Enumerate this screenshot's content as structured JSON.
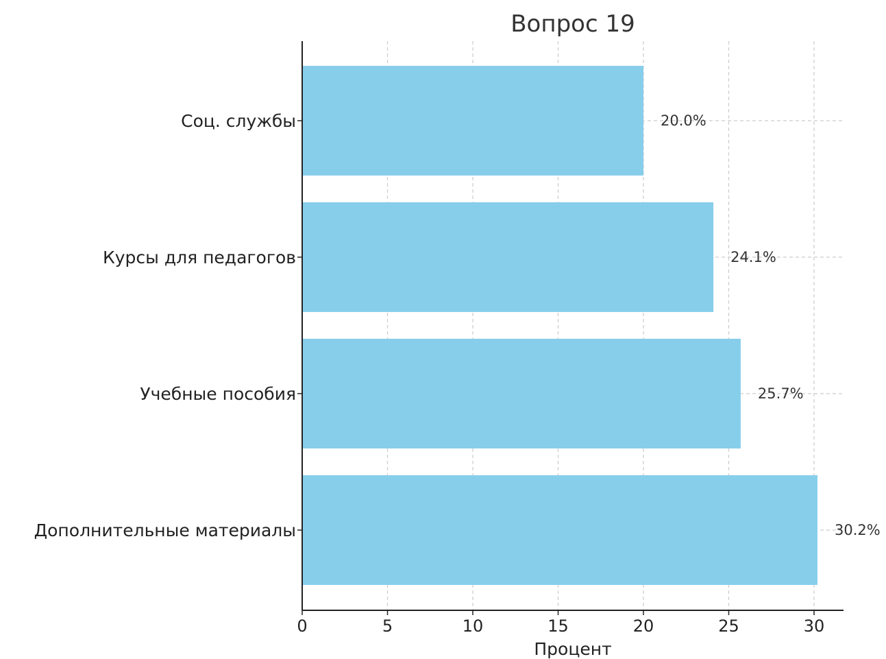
{
  "chart_data": {
    "type": "bar",
    "orientation": "horizontal",
    "title": "Вопрос 19",
    "xlabel": "Процент",
    "ylabel": "",
    "categories": [
      "Соц. службы",
      "Курсы для педагогов",
      "Учебные пособия",
      "Дополнительные материалы"
    ],
    "values": [
      20.0,
      24.1,
      25.7,
      30.2
    ],
    "data_labels": [
      "20.0%",
      "24.1%",
      "25.7%",
      "30.2%"
    ],
    "xlim": [
      0,
      31.7
    ],
    "x_ticks": [
      0,
      5,
      10,
      15,
      20,
      25,
      30
    ],
    "x_tick_labels": [
      "0",
      "5",
      "10",
      "15",
      "20",
      "25",
      "30"
    ],
    "grid": true,
    "bar_color": "#87CEEB",
    "grid_color": "#cccccc"
  }
}
